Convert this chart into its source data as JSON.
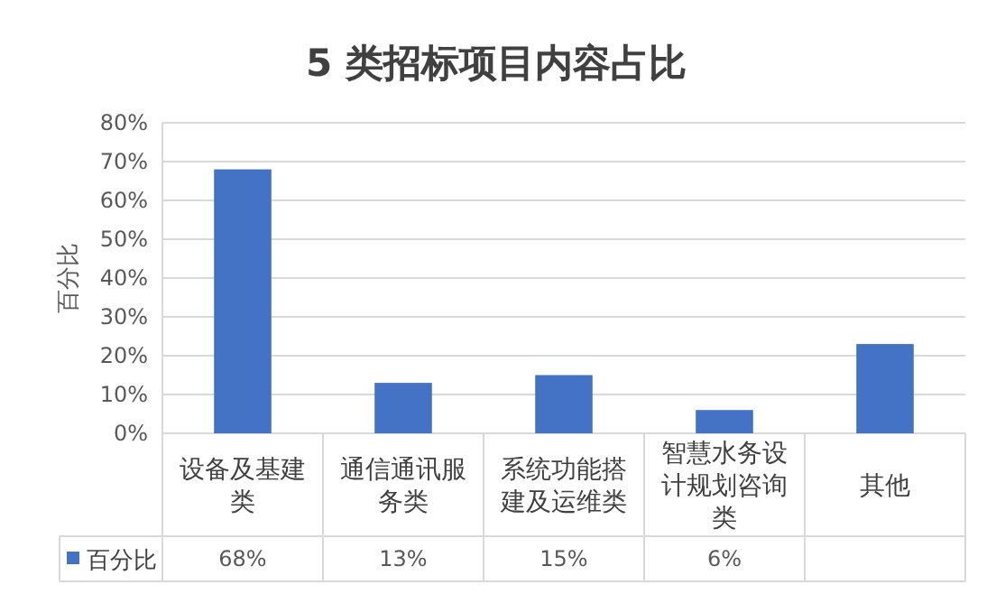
{
  "chart_data": {
    "type": "bar",
    "title": "5 类招标项目内容占比",
    "ylabel": "百分比",
    "categories": [
      "设备及基建类",
      "通信通讯服务类",
      "系统功能搭建及运维类",
      "智慧水务设计规划咨询类",
      "其他"
    ],
    "series": [
      {
        "name": "百分比",
        "color": "#4472c4",
        "values": [
          68,
          13,
          15,
          6,
          23
        ],
        "value_labels": [
          "68%",
          "13%",
          "15%",
          "6%",
          null
        ]
      }
    ],
    "ylim": [
      0,
      80
    ],
    "yticks": [
      {
        "value": 0,
        "label": "0%"
      },
      {
        "value": 10,
        "label": "10%"
      },
      {
        "value": 20,
        "label": "20%"
      },
      {
        "value": 30,
        "label": "30%"
      },
      {
        "value": 40,
        "label": "40%"
      },
      {
        "value": 50,
        "label": "50%"
      },
      {
        "value": 60,
        "label": "60%"
      },
      {
        "value": 70,
        "label": "70%"
      },
      {
        "value": 80,
        "label": "80%"
      }
    ],
    "grid": "y",
    "legend": "bottom"
  }
}
